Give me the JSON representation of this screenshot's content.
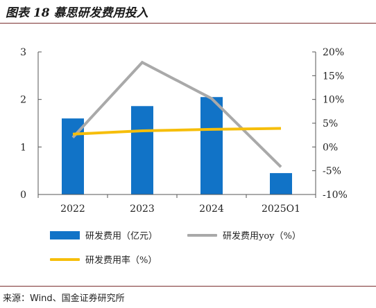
{
  "title": "图表 18 慕思研发费用投入",
  "source": "来源：Wind、国金证券研究所",
  "colors": {
    "bar": "#1173c7",
    "yoy": "#a9a9a9",
    "rate": "#f6be0a",
    "rule": "#7a2f2f"
  },
  "chart_data": {
    "type": "bar",
    "categories": [
      "2022",
      "2023",
      "2024",
      "2025Q1"
    ],
    "series": [
      {
        "name": "研发费用（亿元）",
        "type": "bar",
        "axis": "left",
        "values": [
          1.6,
          1.86,
          2.05,
          0.45
        ]
      },
      {
        "name": "研发费用yoy（%）",
        "type": "line",
        "axis": "right",
        "values": [
          2.0,
          17.8,
          10.2,
          -4.2
        ]
      },
      {
        "name": "研发费用率（%）",
        "type": "line",
        "axis": "right",
        "values": [
          2.7,
          3.4,
          3.7,
          3.9
        ]
      }
    ],
    "y_left": {
      "min": 0,
      "max": 3,
      "ticks": [
        "0",
        "1",
        "2",
        "3"
      ],
      "tick_values": [
        0,
        1,
        2,
        3
      ]
    },
    "y_right": {
      "min": -10,
      "max": 20,
      "ticks": [
        "-10%",
        "-5%",
        "0%",
        "5%",
        "10%",
        "15%",
        "20%"
      ],
      "tick_values": [
        -10,
        -5,
        0,
        5,
        10,
        15,
        20
      ]
    },
    "grid": false,
    "legend_position": "bottom"
  }
}
